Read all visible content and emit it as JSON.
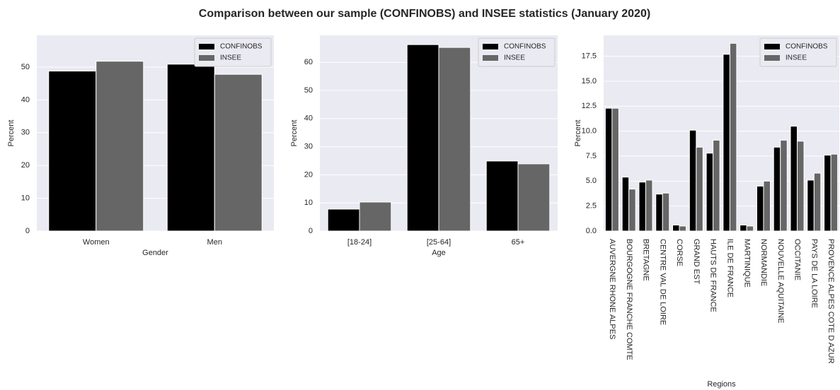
{
  "title": "Comparison between our sample (CONFINOBS) and INSEE statistics (January 2020)",
  "chart_data": [
    {
      "type": "bar",
      "xlabel": "Gender",
      "ylabel": "Percent",
      "categories": [
        "Women",
        "Men"
      ],
      "series": [
        {
          "name": "CONFINOBS",
          "color": "#000000",
          "values": [
            48.8,
            50.9
          ]
        },
        {
          "name": "INSEE",
          "color": "#666666",
          "values": [
            51.8,
            47.8
          ]
        }
      ],
      "ylim": [
        0,
        59.7
      ],
      "yticks": [
        0,
        10,
        20,
        30,
        40,
        50
      ],
      "grid": true,
      "legend": "upper right"
    },
    {
      "type": "bar",
      "xlabel": "Age",
      "ylabel": "Percent",
      "categories": [
        "[18-24]",
        "[25-64]",
        "65+"
      ],
      "series": [
        {
          "name": "CONFINOBS",
          "color": "#000000",
          "values": [
            7.8,
            66.3,
            24.9
          ]
        },
        {
          "name": "INSEE",
          "color": "#666666",
          "values": [
            10.3,
            65.3,
            23.9
          ]
        }
      ],
      "ylim": [
        0,
        69.6
      ],
      "yticks": [
        0,
        10,
        20,
        30,
        40,
        50,
        60
      ],
      "grid": true,
      "legend": "upper right"
    },
    {
      "type": "bar",
      "xlabel": "Regions",
      "ylabel": "Percent",
      "rotate_labels": true,
      "categories": [
        "AUVERGNE RHONE ALPES",
        "BOURGOGNE FRANCHE COMTE",
        "BRETAGNE",
        "CENTRE VAL DE LOIRE",
        "CORSE",
        "GRAND EST",
        "HAUTS DE FRANCE",
        "ILE DE FRANCE",
        "MARTINIQUE",
        "NORMANDIE",
        "NOUVELLE AQUITAINE",
        "OCCITANIE",
        "PAYS DE LA LOIRE",
        "PROVENCE ALPES COTE D AZUR"
      ],
      "series": [
        {
          "name": "CONFINOBS",
          "color": "#000000",
          "values": [
            12.3,
            5.4,
            4.9,
            3.7,
            0.6,
            10.1,
            7.8,
            17.7,
            0.6,
            4.5,
            8.4,
            10.5,
            5.1,
            7.6
          ]
        },
        {
          "name": "INSEE",
          "color": "#666666",
          "values": [
            12.3,
            4.2,
            5.1,
            3.8,
            0.5,
            8.4,
            9.1,
            18.8,
            0.5,
            5.0,
            9.1,
            9.0,
            5.8,
            7.7
          ]
        }
      ],
      "ylim": [
        0,
        19.6
      ],
      "yticks": [
        {
          "value": 0,
          "label": "0.0"
        },
        2.5,
        {
          "value": 5,
          "label": "5.0"
        },
        7.5,
        {
          "value": 10,
          "label": "10.0"
        },
        12.5,
        {
          "value": 15,
          "label": "15.0"
        },
        17.5
      ],
      "grid": true,
      "legend": "upper right"
    }
  ]
}
